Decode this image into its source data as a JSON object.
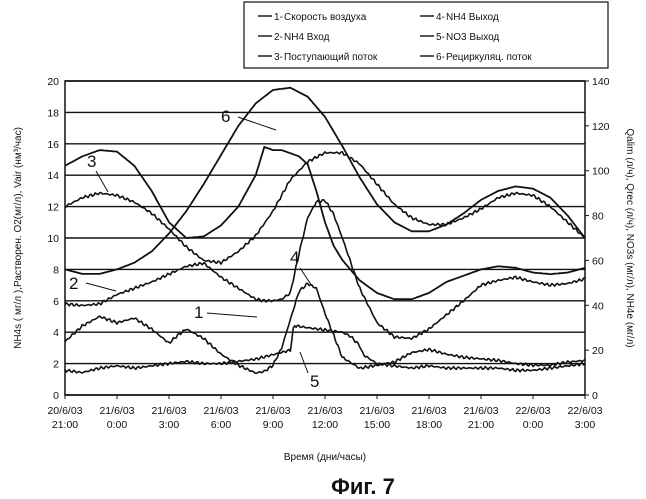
{
  "chart_data": {
    "type": "line",
    "caption": "Фиг. 7",
    "xlabel": "Время (дни/часы)",
    "ylabel_left": "NH4s ( мг/л ),Растворен. O2(мг/л), Vair (нм³/час)",
    "ylabel_right": "Qalim (л/ч), Qrec (л/ч), NO3s (мг/л), NH4e (мг/л)",
    "ylim_left": [
      0,
      20
    ],
    "ylim_right": [
      0,
      140
    ],
    "xlim": [
      0,
      30
    ],
    "left_ticks": [
      "0",
      "2",
      "4",
      "6",
      "8",
      "10",
      "12",
      "14",
      "16",
      "18",
      "20"
    ],
    "right_ticks": [
      "0",
      "20",
      "40",
      "60",
      "80",
      "100",
      "120",
      "140"
    ],
    "grid": "horizontal",
    "x_ticks": [
      {
        "t": 0,
        "line1": "20/6/03",
        "line2": "21:00"
      },
      {
        "t": 3,
        "line1": "21/6/03",
        "line2": "0:00"
      },
      {
        "t": 6,
        "line1": "21/6/03",
        "line2": "3:00"
      },
      {
        "t": 9,
        "line1": "21/6/03",
        "line2": "6:00"
      },
      {
        "t": 12,
        "line1": "21/6/03",
        "line2": "9:00"
      },
      {
        "t": 15,
        "line1": "21/6/03",
        "line2": "12:00"
      },
      {
        "t": 18,
        "line1": "21/6/03",
        "line2": "15:00"
      },
      {
        "t": 21,
        "line1": "21/6/03",
        "line2": "18:00"
      },
      {
        "t": 24,
        "line1": "21/6/03",
        "line2": "21:00"
      },
      {
        "t": 27,
        "line1": "22/6/03",
        "line2": "0:00"
      },
      {
        "t": 30,
        "line1": "22/6/03",
        "line2": "3:00"
      }
    ],
    "legend": {
      "placement": "top",
      "entries": [
        {
          "num": "1",
          "label": "Скорость воздуха"
        },
        {
          "num": "2",
          "label": "NH4 Вход"
        },
        {
          "num": "3",
          "label": "Поступающий поток"
        },
        {
          "num": "4",
          "label": "NH4 Выход"
        },
        {
          "num": "5",
          "label": "NO3 Выход"
        },
        {
          "num": "6",
          "label": "Рециркуляц. поток"
        }
      ]
    },
    "callouts": [
      "1",
      "2",
      "3",
      "4",
      "5",
      "6"
    ],
    "series": [
      {
        "name": "Скорость воздуха",
        "num": "1",
        "axis": "left",
        "noisy": false,
        "x": [
          0,
          1,
          2,
          3,
          4,
          5,
          6,
          7,
          8,
          9,
          10,
          11,
          11.5,
          12,
          12.5,
          13,
          13.5,
          14,
          14.5,
          15,
          15.5,
          16,
          17,
          18,
          19,
          20,
          21,
          22,
          23,
          24,
          25,
          26,
          27,
          28,
          29,
          30
        ],
        "y": [
          14.6,
          15.2,
          15.6,
          15.5,
          14.6,
          13.0,
          11.0,
          10.0,
          10.1,
          10.8,
          12.0,
          14.0,
          15.8,
          15.6,
          15.6,
          15.4,
          15.2,
          14.7,
          13.0,
          11.0,
          9.5,
          8.6,
          7.3,
          6.5,
          6.1,
          6.1,
          6.5,
          7.2,
          7.6,
          8.0,
          8.2,
          8.1,
          7.8,
          7.7,
          7.8,
          8.1
        ]
      },
      {
        "name": "NH4 Вход",
        "num": "2",
        "axis": "left",
        "noisy": true,
        "x": [
          0,
          1,
          2,
          3,
          4,
          5,
          6,
          7,
          8,
          9,
          10,
          11,
          11.5,
          12,
          12.5,
          13,
          13.5,
          14,
          14.5,
          15,
          15.5,
          16,
          17,
          18,
          19,
          20,
          21,
          22,
          23,
          24,
          25,
          26,
          27,
          28,
          29,
          30
        ],
        "y": [
          5.8,
          5.7,
          5.8,
          6.4,
          6.8,
          7.2,
          7.7,
          8.2,
          8.4,
          7.5,
          6.8,
          6.1,
          6.0,
          6.0,
          6.1,
          6.5,
          9.0,
          11.3,
          12.3,
          12.4,
          11.5,
          10.0,
          6.8,
          4.6,
          3.7,
          3.6,
          4.2,
          5.1,
          6.0,
          7.0,
          7.3,
          7.5,
          7.2,
          7.0,
          7.1,
          7.4
        ]
      },
      {
        "name": "Поступающий поток",
        "num": "3",
        "axis": "right",
        "noisy": true,
        "x": [
          0,
          1,
          2,
          3,
          4,
          5,
          6,
          7,
          8,
          9,
          10,
          11,
          12,
          13,
          14,
          15,
          16,
          17,
          18,
          19,
          20,
          21,
          22,
          23,
          24,
          25,
          26,
          27,
          28,
          29,
          30
        ],
        "y": [
          84,
          88,
          90,
          89,
          86,
          81,
          74,
          66,
          60,
          59,
          64,
          71,
          82,
          96,
          104,
          108,
          108,
          103,
          94,
          85,
          79,
          76,
          76,
          79,
          83,
          88,
          90,
          89,
          84,
          77,
          70
        ]
      },
      {
        "name": "NH4 Выход",
        "num": "4",
        "axis": "left",
        "noisy": true,
        "x": [
          0,
          1,
          2,
          3,
          4,
          5,
          6,
          6.5,
          7,
          8,
          9,
          10,
          11,
          11.5,
          12,
          12.5,
          13,
          13.5,
          14,
          14.5,
          15,
          16,
          17,
          18,
          19,
          20,
          21,
          22,
          23,
          24,
          25,
          26,
          27,
          28,
          29,
          30
        ],
        "y": [
          3.4,
          4.4,
          5.0,
          4.6,
          4.9,
          4.2,
          3.3,
          3.8,
          4.2,
          3.6,
          2.6,
          1.9,
          1.4,
          1.5,
          1.9,
          3.0,
          4.8,
          6.6,
          7.1,
          6.8,
          5.2,
          2.4,
          1.7,
          1.9,
          2.1,
          2.7,
          2.9,
          2.6,
          2.4,
          2.3,
          2.2,
          2.0,
          1.9,
          1.9,
          2.1,
          2.2
        ]
      },
      {
        "name": "NO3 Выход",
        "num": "5",
        "axis": "right",
        "noisy": true,
        "x": [
          0,
          1,
          2,
          3,
          4,
          5,
          6,
          7,
          8,
          9,
          10,
          11,
          12,
          13,
          13.2,
          14,
          15,
          16,
          16.5,
          17,
          17.2,
          18,
          19,
          20,
          21,
          22,
          23,
          24,
          25,
          26,
          27,
          28,
          29,
          30
        ],
        "y": [
          11,
          10,
          12,
          13,
          12,
          13,
          14,
          15,
          14,
          14,
          15,
          16,
          18,
          20,
          31,
          30,
          29,
          28,
          26,
          22,
          18,
          14,
          13,
          12,
          13,
          12,
          12,
          12,
          12,
          11,
          11,
          12,
          13,
          14
        ]
      },
      {
        "name": "Рециркуляц. поток",
        "num": "6",
        "axis": "right",
        "noisy": false,
        "x": [
          0,
          1,
          2,
          3,
          4,
          5,
          6,
          7,
          8,
          9,
          10,
          11,
          12,
          13,
          14,
          15,
          16,
          17,
          18,
          19,
          20,
          21,
          22,
          23,
          24,
          25,
          26,
          27,
          28,
          29,
          30
        ],
        "y": [
          56,
          54,
          54,
          56,
          59,
          64,
          72,
          82,
          94,
          107,
          120,
          130,
          136,
          137,
          133,
          124,
          111,
          97,
          85,
          77,
          73,
          73,
          76,
          81,
          87,
          91,
          93,
          92,
          88,
          80,
          70
        ]
      }
    ]
  }
}
